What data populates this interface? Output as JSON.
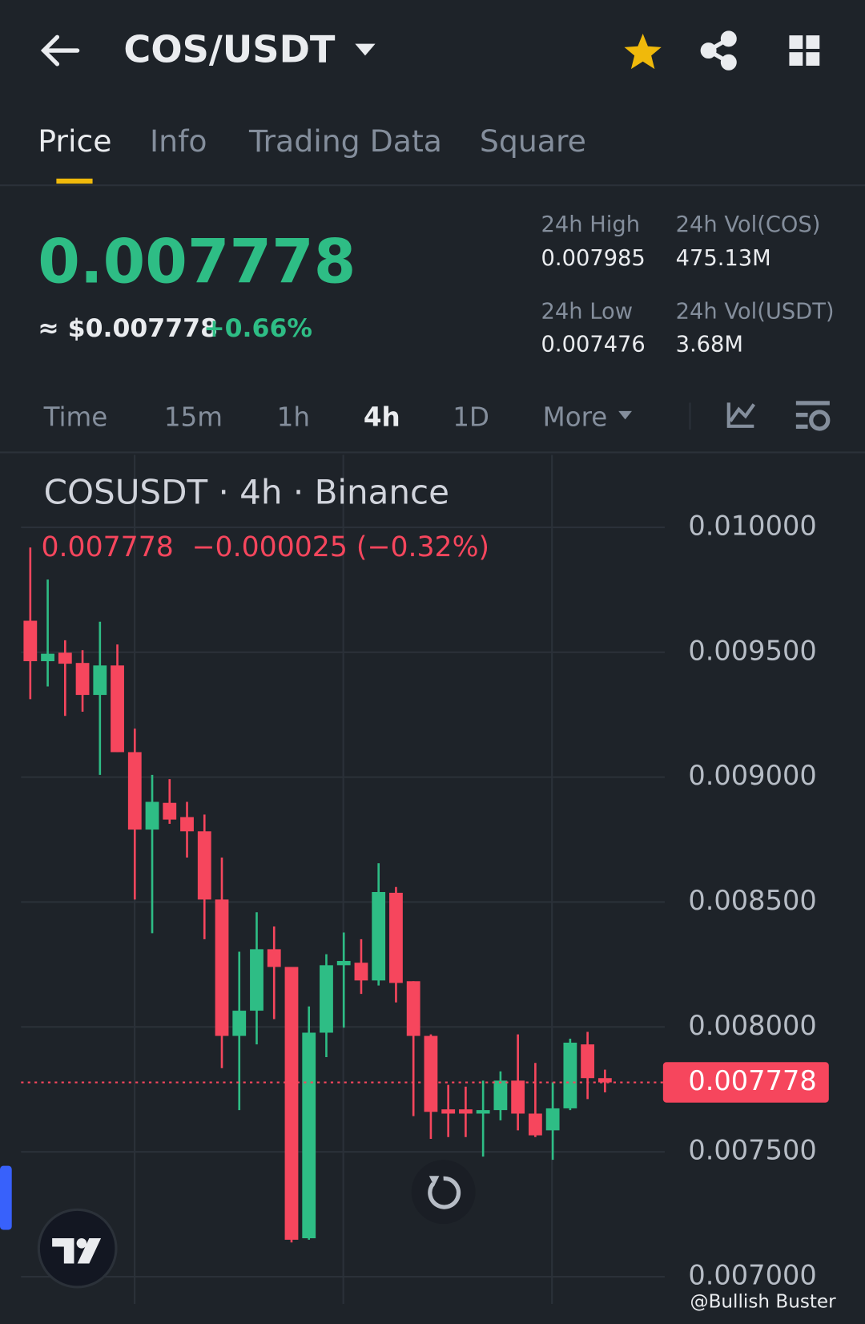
{
  "header": {
    "pair": "COS/USDT"
  },
  "tabs": [
    "Price",
    "Info",
    "Trading Data",
    "Square"
  ],
  "ticker": {
    "price": "0.007778",
    "usd": "≈ $0.007778",
    "change": "+0.66%",
    "stats": [
      {
        "label": "24h High",
        "value": "0.007985"
      },
      {
        "label": "24h Vol(COS)",
        "value": "475.13M"
      },
      {
        "label": "24h Low",
        "value": "0.007476"
      },
      {
        "label": "24h Vol(USDT)",
        "value": "3.68M"
      }
    ]
  },
  "intervals": [
    "Time",
    "15m",
    "1h",
    "4h",
    "1D",
    "More"
  ],
  "chart_data": {
    "type": "candlestick",
    "title": "COSUSDT · 4h · Binance",
    "ohlc_line": [
      "0.007778",
      "−0.000025 (−0.32%)"
    ],
    "up_color": "#2ebd85",
    "down_color": "#f6465d",
    "open": [
      0.009626,
      0.009464,
      0.009498,
      0.009457,
      0.009329,
      0.009447,
      0.0091,
      0.00879,
      0.008897,
      0.00884,
      0.008783,
      0.00851,
      0.007964,
      0.008065,
      0.008311,
      0.00824,
      0.007154,
      0.007977,
      0.008247,
      0.008257,
      0.008186,
      0.008537,
      0.008183,
      0.007964,
      0.00767,
      0.00767,
      0.007653,
      0.007667,
      0.007785,
      0.007653,
      0.007586,
      0.007674,
      0.00793,
      0.007795
    ],
    "high": [
      0.009919,
      0.009791,
      0.009548,
      0.009508,
      0.009622,
      0.009531,
      0.009194,
      0.009009,
      0.008992,
      0.008901,
      0.00885,
      0.008678,
      0.008301,
      0.008459,
      0.008402,
      0.00824,
      0.008082,
      0.008291,
      0.008378,
      0.008351,
      0.008655,
      0.00856,
      0.008183,
      0.00797,
      0.007768,
      0.007761,
      0.007785,
      0.007822,
      0.00797,
      0.007856,
      0.007778,
      0.007953,
      0.00798,
      0.007829
    ],
    "low": [
      0.009312,
      0.009363,
      0.009245,
      0.009262,
      0.009009,
      0.0091,
      0.00851,
      0.008375,
      0.008813,
      0.008678,
      0.008351,
      0.007835,
      0.007667,
      0.00793,
      0.008031,
      0.007137,
      0.007148,
      0.007879,
      0.007997,
      0.008132,
      0.008166,
      0.008098,
      0.007643,
      0.007552,
      0.007559,
      0.007559,
      0.007481,
      0.007626,
      0.007586,
      0.007559,
      0.007468,
      0.007667,
      0.007711,
      0.007738
    ],
    "close": [
      0.009464,
      0.009494,
      0.009454,
      0.009329,
      0.009447,
      0.0091,
      0.00879,
      0.008901,
      0.00883,
      0.008783,
      0.00851,
      0.007964,
      0.008065,
      0.008311,
      0.00824,
      0.007148,
      0.007977,
      0.008247,
      0.008264,
      0.008186,
      0.00854,
      0.008176,
      0.007964,
      0.00766,
      0.007653,
      0.007653,
      0.007667,
      0.007785,
      0.007653,
      0.007566,
      0.007674,
      0.007937,
      0.007795,
      0.007778
    ],
    "ylim": [
      0.006891,
      0.01029
    ],
    "yticks": [
      {
        "value": 0.01,
        "label": "0.010000"
      },
      {
        "value": 0.0095,
        "label": "0.009500"
      },
      {
        "value": 0.009,
        "label": "0.009000"
      },
      {
        "value": 0.0085,
        "label": "0.008500"
      },
      {
        "value": 0.008,
        "label": "0.008000"
      },
      {
        "value": 0.0075,
        "label": "0.007500"
      },
      {
        "value": 0.007,
        "label": "0.007000"
      }
    ],
    "grid": true,
    "last_price": {
      "value": 0.007778,
      "label": "0.007778"
    }
  },
  "watermark": "@Bullish Buster"
}
